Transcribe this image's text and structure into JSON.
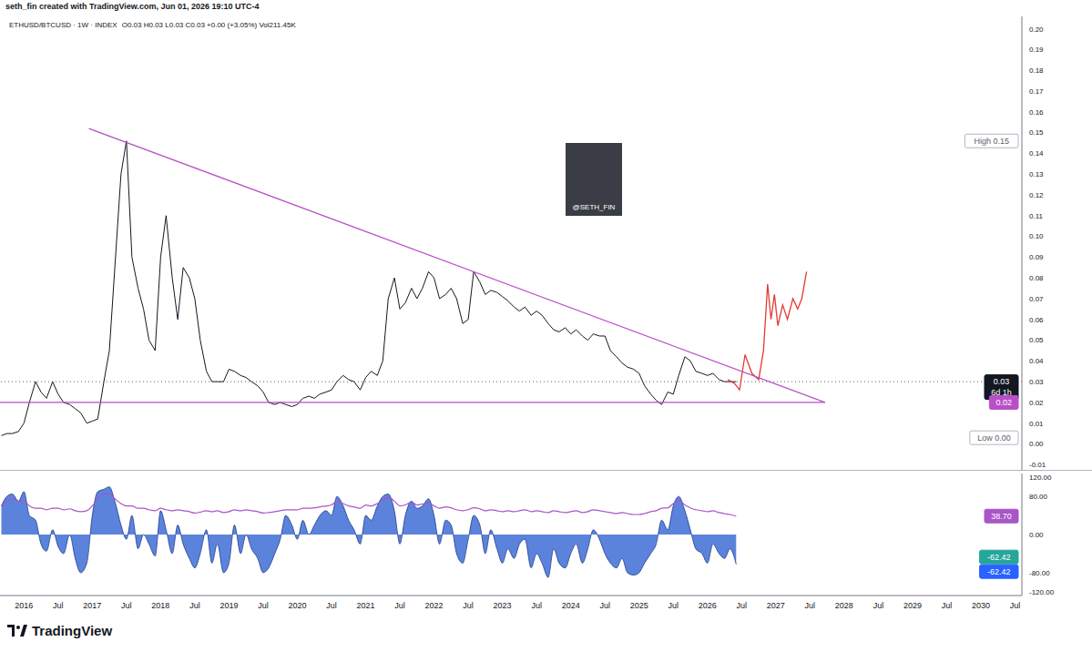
{
  "header": "seth_fin created with TradingView.com, Jun 01, 2026 19:10 UTC-4",
  "image_label": "@SETH_FIN",
  "footer": "TradingView",
  "chart_data": [
    {
      "type": "line",
      "title": "ETHUSD/BTCUSD · 1W · INDEX",
      "subtitle": "O0.03 H0.03 L0.03 C0.03 +0.00 (+3.05%) Vol211.45K",
      "grid": false,
      "xlim": [
        2015.65,
        2030.6
      ],
      "xticks": [
        2016,
        {
          "value": 2016.5,
          "label": "Jul"
        },
        2017,
        {
          "value": 2017.5,
          "label": "Jul"
        },
        2018,
        {
          "value": 2018.5,
          "label": "Jul"
        },
        2019,
        {
          "value": 2019.5,
          "label": "Jul"
        },
        2020,
        {
          "value": 2020.5,
          "label": "Jul"
        },
        2021,
        {
          "value": 2021.5,
          "label": "Jul"
        },
        2022,
        {
          "value": 2022.5,
          "label": "Jul"
        },
        2023,
        {
          "value": 2023.5,
          "label": "Jul"
        },
        2024,
        {
          "value": 2024.5,
          "label": "Jul"
        },
        2025,
        {
          "value": 2025.5,
          "label": "Jul"
        },
        2026,
        {
          "value": 2026.5,
          "label": "Jul"
        },
        2027,
        {
          "value": 2027.5,
          "label": "Jul"
        },
        2028,
        {
          "value": 2028.5,
          "label": "Jul"
        },
        2029,
        {
          "value": 2029.5,
          "label": "Jul"
        },
        2030,
        {
          "value": 2030.5,
          "label": "Jul"
        }
      ],
      "ylim": [
        -0.0125,
        0.206
      ],
      "yticks": [
        {
          "value": -0.01,
          "label": "-0.01"
        },
        {
          "value": 0,
          "label": "0.00"
        },
        {
          "value": 0.01,
          "label": "0.01"
        },
        {
          "value": 0.02,
          "label": "0.02"
        },
        {
          "value": 0.03,
          "label": "0.03"
        },
        {
          "value": 0.04,
          "label": "0.04"
        },
        {
          "value": 0.05,
          "label": "0.05"
        },
        {
          "value": 0.06,
          "label": "0.06"
        },
        {
          "value": 0.07,
          "label": "0.07"
        },
        {
          "value": 0.08,
          "label": "0.08"
        },
        {
          "value": 0.09,
          "label": "0.09"
        },
        {
          "value": 0.1,
          "label": "0.10"
        },
        {
          "value": 0.11,
          "label": "0.11"
        },
        {
          "value": 0.12,
          "label": "0.12"
        },
        {
          "value": 0.13,
          "label": "0.13"
        },
        {
          "value": 0.14,
          "label": "0.14"
        },
        {
          "value": 0.15,
          "label": "0.15"
        },
        {
          "value": 0.16,
          "label": "0.16"
        },
        {
          "value": 0.17,
          "label": "0.17"
        },
        {
          "value": 0.18,
          "label": "0.18"
        },
        {
          "value": 0.19,
          "label": "0.19"
        },
        {
          "value": 0.2,
          "label": "0.20"
        }
      ],
      "series": [
        {
          "color": "#131722",
          "x": [
            2015.67,
            2015.75,
            2015.83,
            2015.92,
            2016,
            2016.08,
            2016.17,
            2016.25,
            2016.33,
            2016.42,
            2016.5,
            2016.58,
            2016.67,
            2016.75,
            2016.83,
            2016.92,
            2017,
            2017.08,
            2017.17,
            2017.25,
            2017.33,
            2017.42,
            2017.5,
            2017.58,
            2017.67,
            2017.75,
            2017.83,
            2017.92,
            2018,
            2018.08,
            2018.17,
            2018.25,
            2018.33,
            2018.42,
            2018.5,
            2018.58,
            2018.67,
            2018.75,
            2018.83,
            2018.92,
            2019,
            2019.08,
            2019.17,
            2019.25,
            2019.33,
            2019.42,
            2019.5,
            2019.58,
            2019.67,
            2019.75,
            2019.83,
            2019.92,
            2020,
            2020.08,
            2020.17,
            2020.25,
            2020.33,
            2020.42,
            2020.5,
            2020.58,
            2020.67,
            2020.75,
            2020.83,
            2020.92,
            2021,
            2021.08,
            2021.17,
            2021.25,
            2021.33,
            2021.42,
            2021.5,
            2021.58,
            2021.67,
            2021.75,
            2021.83,
            2021.92,
            2022,
            2022.08,
            2022.17,
            2022.25,
            2022.33,
            2022.42,
            2022.5,
            2022.58,
            2022.67,
            2022.75,
            2022.83,
            2022.92,
            2023,
            2023.08,
            2023.17,
            2023.25,
            2023.33,
            2023.42,
            2023.5,
            2023.58,
            2023.67,
            2023.75,
            2023.83,
            2023.92,
            2024,
            2024.08,
            2024.17,
            2024.25,
            2024.33,
            2024.42,
            2024.5,
            2024.58,
            2024.67,
            2024.75,
            2024.83,
            2024.92,
            2025,
            2025.08,
            2025.17,
            2025.25,
            2025.33,
            2025.42,
            2025.5,
            2025.58,
            2025.67,
            2025.75,
            2025.83,
            2025.92,
            2026,
            2026.08,
            2026.17,
            2026.25,
            2026.33,
            2026.42
          ],
          "values": [
            0.004,
            0.005,
            0.005,
            0.006,
            0.01,
            0.02,
            0.03,
            0.025,
            0.022,
            0.03,
            0.024,
            0.02,
            0.019,
            0.017,
            0.015,
            0.01,
            0.011,
            0.012,
            0.03,
            0.045,
            0.085,
            0.13,
            0.146,
            0.09,
            0.075,
            0.065,
            0.05,
            0.045,
            0.09,
            0.11,
            0.08,
            0.06,
            0.085,
            0.08,
            0.07,
            0.05,
            0.035,
            0.03,
            0.03,
            0.03,
            0.036,
            0.035,
            0.033,
            0.032,
            0.03,
            0.028,
            0.025,
            0.02,
            0.019,
            0.02,
            0.019,
            0.018,
            0.019,
            0.022,
            0.023,
            0.022,
            0.024,
            0.025,
            0.026,
            0.03,
            0.033,
            0.031,
            0.03,
            0.026,
            0.032,
            0.035,
            0.033,
            0.04,
            0.07,
            0.08,
            0.065,
            0.068,
            0.075,
            0.07,
            0.075,
            0.083,
            0.08,
            0.07,
            0.072,
            0.075,
            0.07,
            0.058,
            0.06,
            0.083,
            0.078,
            0.072,
            0.074,
            0.073,
            0.071,
            0.069,
            0.066,
            0.064,
            0.066,
            0.062,
            0.064,
            0.062,
            0.058,
            0.055,
            0.054,
            0.056,
            0.053,
            0.055,
            0.052,
            0.05,
            0.053,
            0.052,
            0.052,
            0.045,
            0.042,
            0.039,
            0.037,
            0.036,
            0.034,
            0.028,
            0.024,
            0.021,
            0.019,
            0.025,
            0.024,
            0.033,
            0.042,
            0.04,
            0.035,
            0.034,
            0.033,
            0.034,
            0.031,
            0.03,
            0.03,
            0.03
          ]
        },
        {
          "color": "#e53935",
          "x": [
            2026.3,
            2026.4,
            2026.47,
            2026.55,
            2026.65,
            2026.75,
            2026.82,
            2026.88,
            2026.93,
            2026.98,
            2027.03,
            2027.1,
            2027.17,
            2027.25,
            2027.32,
            2027.38,
            2027.45
          ],
          "values": [
            0.031,
            0.029,
            0.026,
            0.043,
            0.034,
            0.031,
            0.045,
            0.077,
            0.06,
            0.072,
            0.057,
            0.067,
            0.06,
            0.07,
            0.065,
            0.07,
            0.083
          ]
        },
        {
          "color": "#b94fc8",
          "x": [
            2016.95,
            2027.72
          ],
          "values": [
            0.152,
            0.02
          ]
        },
        {
          "color": "#b94fc8",
          "x": [
            2015.65,
            2027.72
          ],
          "values": [
            0.02,
            0.02
          ]
        }
      ],
      "price_labels": [
        {
          "label": "High",
          "value": 0.146,
          "value_label": "0.15"
        },
        {
          "label": "Low",
          "value": 0.003,
          "value_label": "0.00"
        },
        {
          "value": 0.03,
          "value_label": "0.03",
          "countdown": "6d 1h",
          "color": "#131722",
          "line_style": "dotted"
        },
        {
          "value": 0.02,
          "value_label": "0.02",
          "color": "#b94fc8"
        }
      ]
    },
    {
      "type": "area",
      "grid": false,
      "xlim": [
        2015.65,
        2030.6
      ],
      "xticks": [
        2016,
        {
          "value": 2016.5,
          "label": "Jul"
        },
        2017,
        {
          "value": 2017.5,
          "label": "Jul"
        },
        2018,
        {
          "value": 2018.5,
          "label": "Jul"
        },
        2019,
        {
          "value": 2019.5,
          "label": "Jul"
        },
        2020,
        {
          "value": 2020.5,
          "label": "Jul"
        },
        2021,
        {
          "value": 2021.5,
          "label": "Jul"
        },
        2022,
        {
          "value": 2022.5,
          "label": "Jul"
        },
        2023,
        {
          "value": 2023.5,
          "label": "Jul"
        },
        2024,
        {
          "value": 2024.5,
          "label": "Jul"
        },
        2025,
        {
          "value": 2025.5,
          "label": "Jul"
        },
        2026,
        {
          "value": 2026.5,
          "label": "Jul"
        },
        2027,
        {
          "value": 2027.5,
          "label": "Jul"
        },
        2028,
        {
          "value": 2028.5,
          "label": "Jul"
        },
        2029,
        {
          "value": 2029.5,
          "label": "Jul"
        },
        2030,
        {
          "value": 2030.5,
          "label": "Jul"
        }
      ],
      "ylim": [
        -128,
        128
      ],
      "yticks": [
        {
          "value": 120,
          "label": "120.00"
        },
        {
          "value": 80,
          "label": "80.00"
        },
        {
          "value": 0,
          "label": "0.00"
        },
        {
          "value": -80,
          "label": "-80.00"
        },
        {
          "value": -120,
          "label": "-120.00"
        }
      ],
      "x": [
        2015.67,
        2015.75,
        2015.83,
        2015.92,
        2016,
        2016.08,
        2016.17,
        2016.25,
        2016.33,
        2016.42,
        2016.5,
        2016.58,
        2016.67,
        2016.75,
        2016.83,
        2016.92,
        2017,
        2017.08,
        2017.17,
        2017.25,
        2017.33,
        2017.42,
        2017.5,
        2017.58,
        2017.67,
        2017.75,
        2017.83,
        2017.92,
        2018,
        2018.08,
        2018.17,
        2018.25,
        2018.33,
        2018.42,
        2018.5,
        2018.58,
        2018.67,
        2018.75,
        2018.83,
        2018.92,
        2019,
        2019.08,
        2019.17,
        2019.25,
        2019.33,
        2019.42,
        2019.5,
        2019.58,
        2019.67,
        2019.75,
        2019.83,
        2019.92,
        2020,
        2020.08,
        2020.17,
        2020.25,
        2020.33,
        2020.42,
        2020.5,
        2020.58,
        2020.67,
        2020.75,
        2020.83,
        2020.92,
        2021,
        2021.08,
        2021.17,
        2021.25,
        2021.33,
        2021.42,
        2021.5,
        2021.58,
        2021.67,
        2021.75,
        2021.83,
        2021.92,
        2022,
        2022.08,
        2022.17,
        2022.25,
        2022.33,
        2022.42,
        2022.5,
        2022.58,
        2022.67,
        2022.75,
        2022.83,
        2022.92,
        2023,
        2023.08,
        2023.17,
        2023.25,
        2023.33,
        2023.42,
        2023.5,
        2023.58,
        2023.67,
        2023.75,
        2023.83,
        2023.92,
        2024,
        2024.08,
        2024.17,
        2024.25,
        2024.33,
        2024.42,
        2024.5,
        2024.58,
        2024.67,
        2024.75,
        2024.83,
        2024.92,
        2025,
        2025.08,
        2025.17,
        2025.25,
        2025.33,
        2025.42,
        2025.5,
        2025.58,
        2025.67,
        2025.75,
        2025.83,
        2025.92,
        2026,
        2026.08,
        2026.17,
        2026.25,
        2026.33,
        2026.42
      ],
      "series": [
        {
          "type": "area",
          "color": "#4a76d8",
          "values": [
            60,
            80,
            85,
            70,
            90,
            40,
            30,
            -20,
            -35,
            10,
            -25,
            -40,
            0,
            -50,
            -80,
            -60,
            40,
            90,
            95,
            100,
            70,
            20,
            -10,
            40,
            -30,
            0,
            -20,
            -45,
            50,
            10,
            -40,
            20,
            -20,
            -50,
            -70,
            -40,
            10,
            -60,
            -20,
            -80,
            -60,
            20,
            -40,
            0,
            -30,
            -50,
            -80,
            -70,
            -40,
            -10,
            40,
            20,
            -10,
            30,
            0,
            20,
            40,
            50,
            40,
            80,
            60,
            30,
            10,
            -20,
            40,
            30,
            60,
            80,
            85,
            50,
            -20,
            40,
            70,
            55,
            60,
            75,
            40,
            -20,
            30,
            20,
            -40,
            -60,
            -10,
            40,
            20,
            -40,
            10,
            -30,
            -60,
            -30,
            -50,
            -20,
            -10,
            -70,
            -40,
            -60,
            -90,
            -30,
            -60,
            -70,
            -40,
            -20,
            -60,
            -30,
            10,
            -10,
            -40,
            -60,
            -70,
            -50,
            -80,
            -85,
            -80,
            -60,
            -40,
            -20,
            30,
            10,
            60,
            80,
            50,
            10,
            -30,
            -40,
            -60,
            -20,
            -40,
            -50,
            -30,
            -62.42
          ]
        },
        {
          "type": "line",
          "color": "#a855c8",
          "values": [
            60,
            70,
            75,
            70,
            70,
            60,
            55,
            55,
            52,
            55,
            55,
            52,
            54,
            50,
            48,
            50,
            60,
            75,
            85,
            85,
            75,
            65,
            60,
            60,
            55,
            55,
            52,
            50,
            55,
            52,
            50,
            52,
            50,
            48,
            45,
            47,
            50,
            48,
            50,
            46,
            48,
            52,
            50,
            52,
            50,
            48,
            45,
            46,
            48,
            50,
            52,
            52,
            52,
            55,
            55,
            56,
            58,
            60,
            62,
            70,
            65,
            60,
            58,
            55,
            62,
            60,
            65,
            72,
            78,
            70,
            60,
            62,
            68,
            62,
            64,
            66,
            60,
            55,
            58,
            56,
            52,
            50,
            52,
            56,
            54,
            50,
            52,
            50,
            48,
            50,
            48,
            50,
            52,
            48,
            50,
            48,
            46,
            50,
            48,
            46,
            48,
            50,
            46,
            48,
            52,
            50,
            48,
            46,
            44,
            46,
            44,
            42,
            42,
            44,
            48,
            50,
            55,
            56,
            65,
            72,
            62,
            56,
            52,
            50,
            48,
            50,
            46,
            44,
            42,
            38.7
          ]
        }
      ],
      "value_badges": [
        {
          "value": 38.7,
          "value_label": "38.70",
          "color": "#a855c8"
        },
        {
          "value": -62.42,
          "value_label": "-62.42",
          "color": "#26a69a"
        },
        {
          "value": -62.42,
          "value_label": "-62.42",
          "color": "#2962ff"
        }
      ]
    }
  ]
}
